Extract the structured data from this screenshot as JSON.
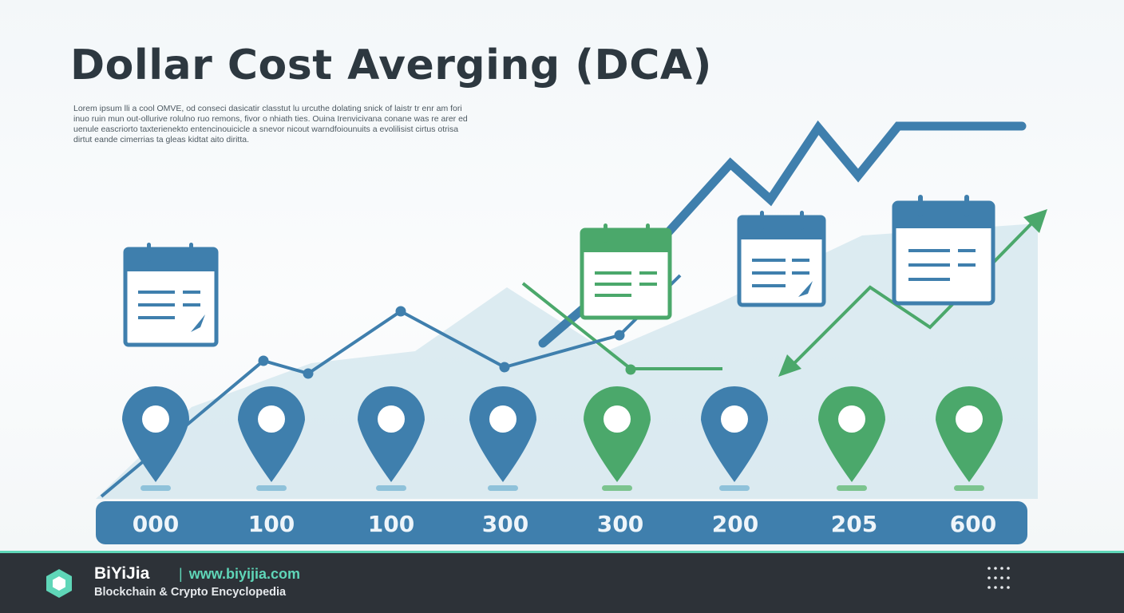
{
  "title": "Dollar Cost Averging (DCA)",
  "subtitle": "Lorem ipsum lli a cool OMVE, od conseci dasicatir classtut lu urcuthe dolating snick of laistr tr enr am fori inuo ruin mun out-ollurive rolulno ruo remons, fivor o nhiath ties. Ouina Irenvicivana conane was re arer ed uenule eascriorto taxterienekto entencinouicicle a snevor nicout warndfoiounuits a evolilisist cirtus otrisa dirtut eande cimerrias ta gleas kidtat aito diritta.",
  "amounts": [
    "000",
    "100",
    "100",
    "300",
    "300",
    "200",
    "205",
    "600"
  ],
  "pin_colors": [
    "blue",
    "blue",
    "blue",
    "blue",
    "green",
    "blue",
    "green",
    "green"
  ],
  "colors": {
    "blue": "#3f7fad",
    "green": "#4ba86b",
    "area": "#cfe3ea",
    "text": "#2d3840",
    "accent": "#5fd6b8",
    "footer": "#2d3238"
  },
  "icons": [
    "calendar-icon",
    "location-pin-icon",
    "arrow-up-right-icon",
    "arrow-down-left-icon",
    "hexagon-logo-icon",
    "grid-dots-icon"
  ],
  "footer": {
    "brand": "BiYiJia",
    "url": "www.biyijia.com",
    "tagline": "Blockchain & Crypto Encyclopedia"
  }
}
